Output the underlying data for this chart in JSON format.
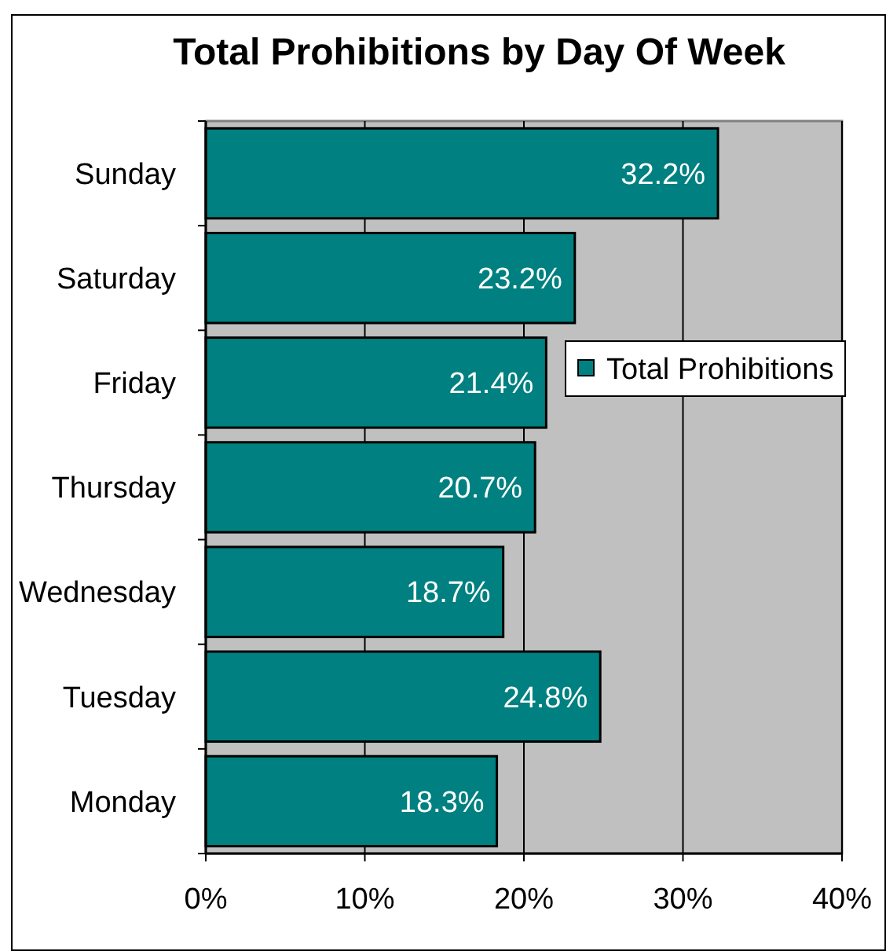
{
  "chart_data": {
    "type": "bar",
    "orientation": "horizontal",
    "title": "Total Prohibitions by Day Of Week",
    "categories": [
      "Sunday",
      "Saturday",
      "Friday",
      "Thursday",
      "Wednesday",
      "Tuesday",
      "Monday"
    ],
    "series": [
      {
        "name": "Total Prohibitions",
        "color": "#008080",
        "values": [
          32.2,
          23.2,
          21.4,
          20.7,
          18.7,
          24.8,
          18.3
        ],
        "value_labels": [
          "32.2%",
          "23.2%",
          "21.4%",
          "20.7%",
          "18.7%",
          "24.8%",
          "18.3%"
        ]
      }
    ],
    "xlim": [
      0,
      40
    ],
    "xticks": [
      {
        "value": 0,
        "label": "0%"
      },
      {
        "value": 10,
        "label": "10%"
      },
      {
        "value": 20,
        "label": "20%"
      },
      {
        "value": 30,
        "label": "30%"
      },
      {
        "value": 40,
        "label": "40%"
      }
    ],
    "grid": "x",
    "legend": "right"
  }
}
